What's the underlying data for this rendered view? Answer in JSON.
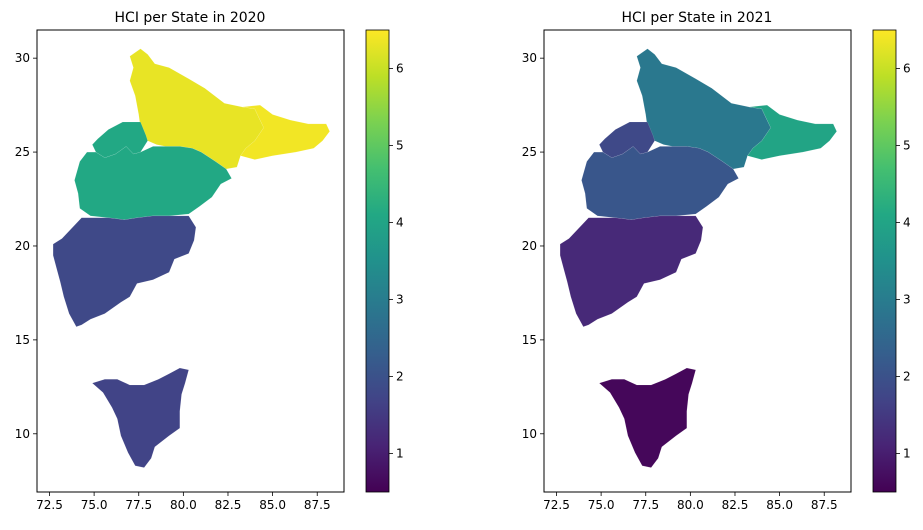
{
  "chart_data": [
    {
      "type": "choropleth",
      "title": "HCI per State in 2020",
      "xlim": [
        71.8,
        89.0
      ],
      "ylim": [
        6.9,
        31.5
      ],
      "xticks": [
        "72.5",
        "75.0",
        "77.5",
        "80.0",
        "82.5",
        "85.0",
        "87.5"
      ],
      "yticks": [
        "10",
        "15",
        "20",
        "25",
        "30"
      ],
      "colorbar": {
        "min": 0.5,
        "max": 6.5,
        "ticks": [
          "1",
          "2",
          "3",
          "4",
          "5",
          "6"
        ]
      },
      "regions": [
        {
          "region": "north",
          "value": 6.3
        },
        {
          "region": "east",
          "value": 6.4
        },
        {
          "region": "central",
          "value": 4.1
        },
        {
          "region": "center-west",
          "value": 4.1
        },
        {
          "region": "west",
          "value": 1.8
        },
        {
          "region": "south",
          "value": 1.7
        }
      ]
    },
    {
      "type": "choropleth",
      "title": "HCI per State in 2021",
      "xlim": [
        71.8,
        89.0
      ],
      "ylim": [
        6.9,
        31.5
      ],
      "xticks": [
        "72.5",
        "75.0",
        "77.5",
        "80.0",
        "82.5",
        "85.0",
        "87.5"
      ],
      "yticks": [
        "10",
        "15",
        "20",
        "25",
        "30"
      ],
      "colorbar": {
        "min": 0.5,
        "max": 6.5,
        "ticks": [
          "1",
          "2",
          "3",
          "4",
          "5",
          "6"
        ]
      },
      "regions": [
        {
          "region": "north",
          "value": 2.9
        },
        {
          "region": "east",
          "value": 4.0
        },
        {
          "region": "central",
          "value": 2.1
        },
        {
          "region": "center-west",
          "value": 1.8
        },
        {
          "region": "west",
          "value": 1.2
        },
        {
          "region": "south",
          "value": 0.6
        }
      ]
    }
  ]
}
